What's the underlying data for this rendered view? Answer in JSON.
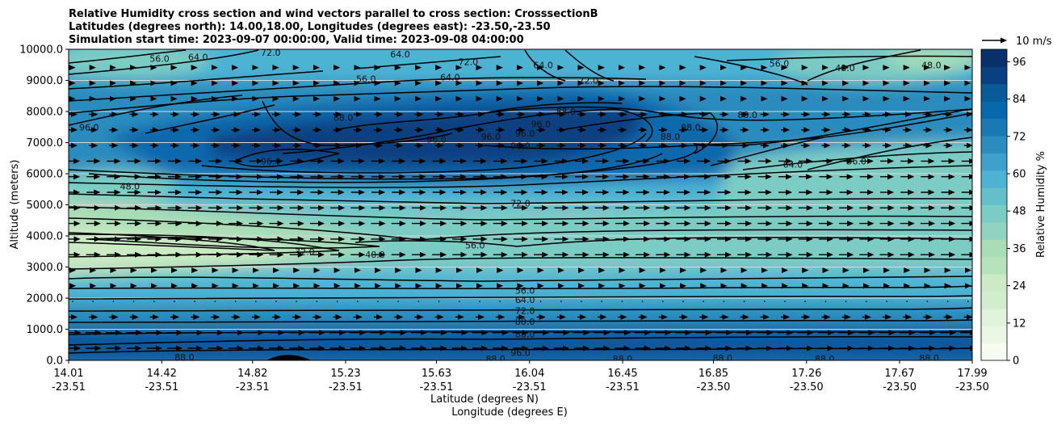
{
  "chart_data": {
    "type": "heatmap",
    "title_lines": [
      "Relative Humidity cross section and wind vectors parallel to cross section: CrosssectionB",
      "Latitudes (degrees north): 14.00,18.00, Longitudes (degrees east): -23.50,-23.50",
      "Simulation start time: 2023-09-07 00:00:00, Valid time: 2023-09-08 04:00:00"
    ],
    "ylabel": "Altitude (meters)",
    "xlabel_lines": [
      "Latitude (degrees N)",
      "Longitude (degrees E)"
    ],
    "ylim": [
      0,
      10000
    ],
    "y_ticks": [
      "0.0",
      "1000.0",
      "2000.0",
      "3000.0",
      "4000.0",
      "5000.0",
      "6000.0",
      "7000.0",
      "8000.0",
      "9000.0",
      "10000.0"
    ],
    "y_tick_values": [
      0,
      1000,
      2000,
      3000,
      4000,
      5000,
      6000,
      7000,
      8000,
      9000,
      10000
    ],
    "x_lat_ticks": [
      "14.01",
      "14.42",
      "14.82",
      "15.23",
      "15.63",
      "16.04",
      "16.45",
      "16.85",
      "17.26",
      "17.67",
      "17.99"
    ],
    "x_lon_ticks": [
      "-23.51",
      "-23.51",
      "-23.51",
      "-23.51",
      "-23.51",
      "-23.51",
      "-23.51",
      "-23.50",
      "-23.50",
      "-23.50",
      "-23.50"
    ],
    "grid": "horizontal",
    "colorbar": {
      "label": "Relative Humidity %",
      "ticks": [
        "0",
        "12",
        "24",
        "36",
        "48",
        "60",
        "72",
        "84",
        "96"
      ],
      "range": [
        0,
        100
      ],
      "colormap": "GnBu"
    },
    "quiver_key": "10 m/s",
    "contour_levels": [
      32,
      40,
      48,
      56,
      64,
      72,
      80,
      88,
      96
    ],
    "contour_labels": [
      {
        "text": "56.0",
        "lat": 15.8,
        "alt": 3700
      },
      {
        "text": "56.0",
        "lat": 16.02,
        "alt": 2250
      },
      {
        "text": "64.0",
        "lat": 16.02,
        "alt": 1950
      },
      {
        "text": "72.0",
        "lat": 16.02,
        "alt": 1600
      },
      {
        "text": "80.0",
        "lat": 16.02,
        "alt": 1250
      },
      {
        "text": "88.0",
        "lat": 16.02,
        "alt": 850
      },
      {
        "text": "96.0",
        "lat": 16.0,
        "alt": 250
      },
      {
        "text": "72.0",
        "lat": 16.0,
        "alt": 5050
      },
      {
        "text": "32.0",
        "lat": 15.05,
        "alt": 3500
      },
      {
        "text": "40.0",
        "lat": 15.36,
        "alt": 3400
      },
      {
        "text": "48.0",
        "lat": 14.28,
        "alt": 5600
      },
      {
        "text": "96.0",
        "lat": 14.1,
        "alt": 7500
      },
      {
        "text": "96.0",
        "lat": 14.9,
        "alt": 6400
      },
      {
        "text": "88.0",
        "lat": 15.22,
        "alt": 7800
      },
      {
        "text": "96.0",
        "lat": 15.63,
        "alt": 7100
      },
      {
        "text": "96.0",
        "lat": 15.87,
        "alt": 7200
      },
      {
        "text": "96.0",
        "lat": 16.02,
        "alt": 7300
      },
      {
        "text": "96.0",
        "lat": 16.09,
        "alt": 7600
      },
      {
        "text": "96.0",
        "lat": 16.0,
        "alt": 6900
      },
      {
        "text": "88.0",
        "lat": 16.2,
        "alt": 8000
      },
      {
        "text": "88.0",
        "lat": 16.66,
        "alt": 7200
      },
      {
        "text": "88.0",
        "lat": 16.75,
        "alt": 7500
      },
      {
        "text": "88.0",
        "lat": 17.0,
        "alt": 7900
      },
      {
        "text": "72.0",
        "lat": 16.3,
        "alt": 9000
      },
      {
        "text": "64.0",
        "lat": 15.69,
        "alt": 9100
      },
      {
        "text": "72.0",
        "lat": 15.77,
        "alt": 9600
      },
      {
        "text": "64.0",
        "lat": 16.1,
        "alt": 9500
      },
      {
        "text": "64.0",
        "lat": 15.47,
        "alt": 9850
      },
      {
        "text": "64.0",
        "lat": 14.58,
        "alt": 9750
      },
      {
        "text": "56.0",
        "lat": 14.41,
        "alt": 9700
      },
      {
        "text": "72.0",
        "lat": 14.9,
        "alt": 9900
      },
      {
        "text": "56.0",
        "lat": 15.32,
        "alt": 9050
      },
      {
        "text": "56.0",
        "lat": 17.14,
        "alt": 9550
      },
      {
        "text": "48.0",
        "lat": 17.43,
        "alt": 9400
      },
      {
        "text": "48.0",
        "lat": 17.81,
        "alt": 9500
      },
      {
        "text": "64.0",
        "lat": 17.2,
        "alt": 6300
      },
      {
        "text": "56.0",
        "lat": 17.48,
        "alt": 6400
      },
      {
        "text": "88.0",
        "lat": 15.89,
        "alt": 50
      },
      {
        "text": "88.0",
        "lat": 16.45,
        "alt": 50
      },
      {
        "text": "88.0",
        "lat": 16.89,
        "alt": 80
      },
      {
        "text": "88.0",
        "lat": 17.34,
        "alt": 50
      },
      {
        "text": "88.0",
        "lat": 17.8,
        "alt": 80
      },
      {
        "text": "88.0",
        "lat": 14.52,
        "alt": 100
      }
    ]
  }
}
